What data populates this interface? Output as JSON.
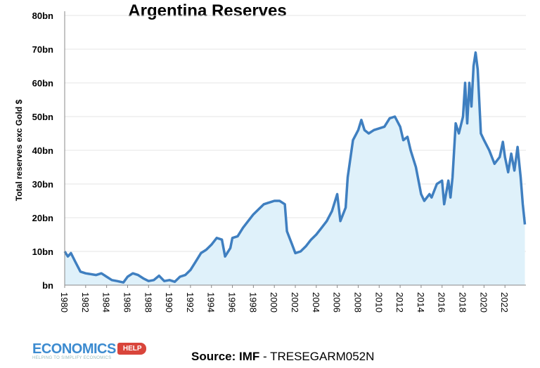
{
  "chart_data": {
    "type": "area",
    "title": "Argentina Reserves",
    "ylabel": "Total reserves exc Gold $",
    "xlabel": "",
    "ylim": [
      0,
      80
    ],
    "xlim": [
      1980,
      2024
    ],
    "grid": true,
    "y_ticks": [
      "bn",
      "10bn",
      "20bn",
      "30bn",
      "40bn",
      "50bn",
      "60bn",
      "70bn",
      "80bn"
    ],
    "x_ticks": [
      "1980",
      "1982",
      "1984",
      "1986",
      "1988",
      "1990",
      "1992",
      "1994",
      "1996",
      "1998",
      "2000",
      "2002",
      "2004",
      "2006",
      "2008",
      "2010",
      "2012",
      "2014",
      "2016",
      "2018",
      "2020",
      "2022"
    ],
    "line_color": "#3f7fc0",
    "fill_color": "#dff1fa",
    "series": [
      {
        "x": [
          1980,
          1980.3,
          1980.6,
          1981,
          1981.5,
          1982,
          1983,
          1983.5,
          1984,
          1984.5,
          1985,
          1985.6,
          1986,
          1986.5,
          1987,
          1987.5,
          1988,
          1988.5,
          1989,
          1989.5,
          1990,
          1990.5,
          1991,
          1991.5,
          1992,
          1992.5,
          1993,
          1993.5,
          1994,
          1994.5,
          1995,
          1995.3,
          1995.8,
          1996,
          1996.5,
          1997,
          1997.5,
          1998,
          1998.5,
          1999,
          1999.5,
          2000,
          2000.5,
          2001,
          2001.2,
          2001.7,
          2002,
          2002.5,
          2003,
          2003.5,
          2004,
          2004.5,
          2005,
          2005.5,
          2006,
          2006.3,
          2006.8,
          2007,
          2007.5,
          2008,
          2008.3,
          2008.6,
          2009,
          2009.5,
          2010,
          2010.5,
          2011,
          2011.5,
          2012,
          2012.3,
          2012.7,
          2013,
          2013.5,
          2014,
          2014.3,
          2014.8,
          2015,
          2015.5,
          2016,
          2016.2,
          2016.6,
          2016.8,
          2017,
          2017.3,
          2017.6,
          2018,
          2018.2,
          2018.4,
          2018.6,
          2018.8,
          2019,
          2019.2,
          2019.4,
          2019.7,
          2020,
          2020.5,
          2021,
          2021.5,
          2021.8,
          2022,
          2022.3,
          2022.6,
          2022.9,
          2023.2,
          2023.5,
          2023.7,
          2023.9
        ],
        "values": [
          10,
          8.5,
          9.5,
          7,
          4,
          3.5,
          3,
          3.5,
          2.5,
          1.5,
          1.2,
          0.8,
          2.5,
          3.5,
          3,
          2,
          1.2,
          1.5,
          2.8,
          1.2,
          1.5,
          1,
          2.5,
          3,
          4.5,
          7,
          9.5,
          10.5,
          12,
          14,
          13.5,
          8.5,
          11,
          14,
          14.5,
          17,
          19,
          21,
          22.5,
          24,
          24.5,
          25,
          25,
          24,
          16,
          12,
          9.5,
          10,
          11.5,
          13.5,
          15,
          17,
          19,
          22,
          27,
          19,
          23,
          32,
          43,
          46,
          49,
          46,
          45,
          46,
          46.5,
          47,
          49.5,
          50,
          47,
          43,
          44,
          40,
          35,
          27,
          25,
          27,
          26,
          30,
          31,
          24,
          31,
          26,
          32,
          48,
          45,
          50,
          60,
          48,
          60,
          53,
          65,
          69,
          64,
          45,
          43,
          40,
          36,
          38,
          42.5,
          38,
          33.5,
          39,
          34,
          41,
          32,
          24,
          18
        ]
      }
    ]
  },
  "footer": {
    "source_bold": "Source: IMF",
    "source_rest": " - TRESEGARM052N",
    "logo_main": "ECONOMICS",
    "logo_help": "HELP",
    "logo_tagline": "HELPING TO SIMPLIFY ECONOMICS"
  }
}
